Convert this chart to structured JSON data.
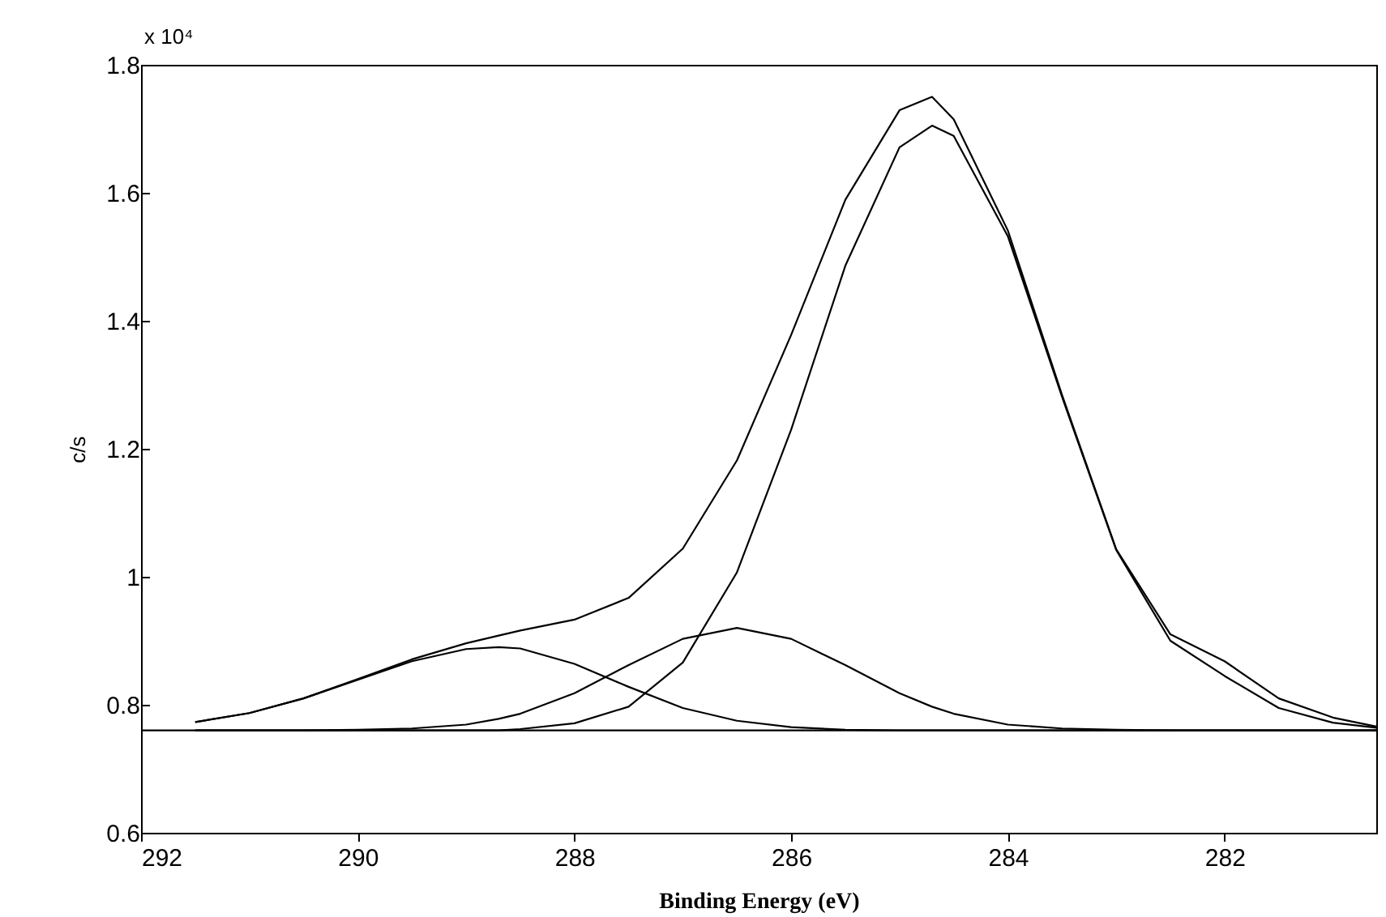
{
  "chart_data": {
    "type": "line",
    "xlabel": "Binding Energy (eV)",
    "ylabel": "c/s",
    "annotations": [
      "x 10⁴"
    ],
    "xlim": [
      292,
      280.6
    ],
    "xticks": [
      292,
      290,
      288,
      286,
      284,
      282
    ],
    "ylim": [
      0.6,
      1.8
    ],
    "yticks": [
      0.6,
      0.8,
      1,
      1.2,
      1.4,
      1.6,
      1.8
    ],
    "x": [
      291.5,
      291,
      290.5,
      290,
      289.5,
      289,
      288.7,
      288.5,
      288,
      287.5,
      287,
      286.5,
      286,
      285.5,
      285,
      284.7,
      284.5,
      284,
      283.5,
      283,
      282.5,
      282,
      281.5,
      281,
      280.6
    ],
    "series": [
      {
        "color": "#000000",
        "values": [
          0.773,
          0.787,
          0.81,
          0.84,
          0.871,
          0.896,
          0.908,
          0.916,
          0.933,
          0.967,
          1.044,
          1.182,
          1.378,
          1.589,
          1.729,
          1.75,
          1.715,
          1.541,
          1.284,
          1.043,
          0.91,
          0.868,
          0.81,
          0.78,
          0.766
        ]
      },
      {
        "color": "#000000",
        "values": [
          0.76,
          0.76,
          0.76,
          0.76,
          0.76,
          0.76,
          0.76,
          0.762,
          0.771,
          0.797,
          0.866,
          1.007,
          1.23,
          1.486,
          1.671,
          1.705,
          1.689,
          1.532,
          1.281,
          1.042,
          0.9,
          0.845,
          0.795,
          0.772,
          0.764
        ]
      },
      {
        "color": "#000000",
        "values": [
          0.76,
          0.76,
          0.76,
          0.761,
          0.763,
          0.769,
          0.778,
          0.786,
          0.818,
          0.862,
          0.903,
          0.92,
          0.903,
          0.862,
          0.818,
          0.797,
          0.786,
          0.769,
          0.763,
          0.761,
          0.76,
          0.76,
          0.76,
          0.76,
          0.76
        ]
      },
      {
        "color": "#000000",
        "values": [
          0.773,
          0.787,
          0.81,
          0.839,
          0.868,
          0.887,
          0.89,
          0.888,
          0.864,
          0.828,
          0.795,
          0.775,
          0.765,
          0.761,
          0.76,
          0.76,
          0.76,
          0.76,
          0.76,
          0.76,
          0.76,
          0.76,
          0.76,
          0.76,
          0.76
        ]
      },
      {
        "color": "#000000",
        "x": [
          292,
          280.6
        ],
        "values": [
          0.76,
          0.76
        ]
      }
    ]
  }
}
